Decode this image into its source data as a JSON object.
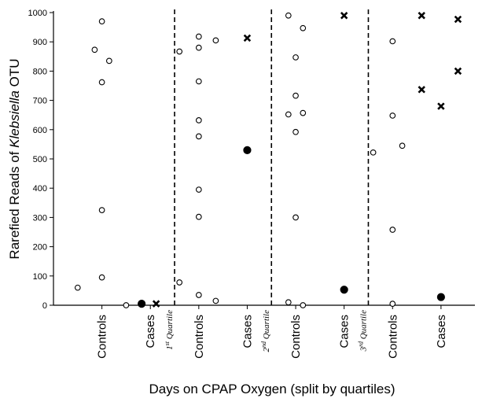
{
  "chart_data": {
    "type": "scatter",
    "title": "",
    "xlabel": "Days on CPAP Oxygen (split by quartiles)",
    "ylabel_parts": [
      "Rarefied Reads of ",
      "Klebsiella",
      " OTU"
    ],
    "ylim": [
      0,
      1000
    ],
    "yticks": [
      0,
      100,
      200,
      300,
      400,
      500,
      600,
      700,
      800,
      900,
      1000
    ],
    "grid": false,
    "categories": [
      "Controls",
      "Cases",
      "Controls",
      "Cases",
      "Controls",
      "Cases",
      "Controls",
      "Cases"
    ],
    "quartile_labels": [
      {
        "num": "1",
        "sup": "st",
        "word": " Quartile"
      },
      {
        "num": "2",
        "sup": "nd",
        "word": " Quartile"
      },
      {
        "num": "3",
        "sup": "rd",
        "word": " Quartile"
      }
    ],
    "marker_legend": {
      "open_circle": "control",
      "filled_circle": "case",
      "cross": "case"
    },
    "colors": {
      "marker": "#000000",
      "divider": "#000000"
    },
    "series": [
      {
        "points": [
          {
            "x": 0.5,
            "y": 60,
            "m": "o"
          },
          {
            "x": 0.85,
            "y": 873,
            "m": "o"
          },
          {
            "x": 1.0,
            "y": 970,
            "m": "o"
          },
          {
            "x": 1.0,
            "y": 762,
            "m": "o"
          },
          {
            "x": 1.0,
            "y": 325,
            "m": "o"
          },
          {
            "x": 1.0,
            "y": 95,
            "m": "o"
          },
          {
            "x": 1.15,
            "y": 835,
            "m": "o"
          },
          {
            "x": 1.5,
            "y": 0,
            "m": "o"
          },
          {
            "x": 1.82,
            "y": 5,
            "m": "f"
          },
          {
            "x": 2.12,
            "y": 5,
            "m": "x"
          },
          {
            "x": 2.6,
            "y": 867,
            "m": "o"
          },
          {
            "x": 2.6,
            "y": 78,
            "m": "o"
          },
          {
            "x": 3.0,
            "y": 918,
            "m": "o"
          },
          {
            "x": 3.0,
            "y": 880,
            "m": "o"
          },
          {
            "x": 3.0,
            "y": 765,
            "m": "o"
          },
          {
            "x": 3.0,
            "y": 632,
            "m": "o"
          },
          {
            "x": 3.0,
            "y": 577,
            "m": "o"
          },
          {
            "x": 3.0,
            "y": 395,
            "m": "o"
          },
          {
            "x": 3.0,
            "y": 302,
            "m": "o"
          },
          {
            "x": 3.0,
            "y": 35,
            "m": "o"
          },
          {
            "x": 3.35,
            "y": 905,
            "m": "o"
          },
          {
            "x": 3.35,
            "y": 15,
            "m": "o"
          },
          {
            "x": 4.0,
            "y": 913,
            "m": "x"
          },
          {
            "x": 4.0,
            "y": 530,
            "m": "f"
          },
          {
            "x": 4.85,
            "y": 990,
            "m": "o"
          },
          {
            "x": 4.85,
            "y": 652,
            "m": "o"
          },
          {
            "x": 4.85,
            "y": 10,
            "m": "o"
          },
          {
            "x": 5.0,
            "y": 847,
            "m": "o"
          },
          {
            "x": 5.0,
            "y": 716,
            "m": "o"
          },
          {
            "x": 5.0,
            "y": 592,
            "m": "o"
          },
          {
            "x": 5.0,
            "y": 300,
            "m": "o"
          },
          {
            "x": 5.15,
            "y": 947,
            "m": "o"
          },
          {
            "x": 5.15,
            "y": 657,
            "m": "o"
          },
          {
            "x": 5.15,
            "y": 0,
            "m": "o"
          },
          {
            "x": 6.0,
            "y": 990,
            "m": "x"
          },
          {
            "x": 6.0,
            "y": 53,
            "m": "f"
          },
          {
            "x": 6.6,
            "y": 522,
            "m": "o"
          },
          {
            "x": 7.0,
            "y": 902,
            "m": "o"
          },
          {
            "x": 7.0,
            "y": 648,
            "m": "o"
          },
          {
            "x": 7.0,
            "y": 258,
            "m": "o"
          },
          {
            "x": 7.0,
            "y": 5,
            "m": "o"
          },
          {
            "x": 7.2,
            "y": 545,
            "m": "o"
          },
          {
            "x": 7.6,
            "y": 990,
            "m": "x"
          },
          {
            "x": 7.6,
            "y": 737,
            "m": "x"
          },
          {
            "x": 8.0,
            "y": 680,
            "m": "x"
          },
          {
            "x": 8.0,
            "y": 28,
            "m": "f"
          },
          {
            "x": 8.35,
            "y": 977,
            "m": "x"
          },
          {
            "x": 8.35,
            "y": 800,
            "m": "x"
          }
        ]
      }
    ]
  }
}
